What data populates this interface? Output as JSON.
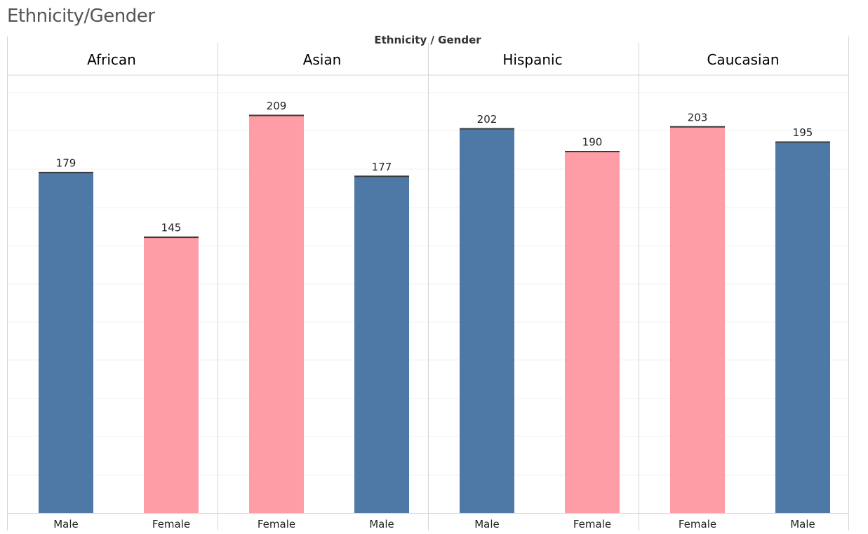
{
  "title": "Ethnicity/Gender",
  "chart_data": {
    "type": "bar",
    "column_header": "Ethnicity / Gender",
    "ylim": [
      0,
      230
    ],
    "grid": true,
    "legend": "none",
    "colors": {
      "Male": "#4e79a7",
      "Female": "#ff9da7"
    },
    "panels": [
      {
        "name": "African",
        "bars": [
          {
            "category": "Male",
            "value": 179
          },
          {
            "category": "Female",
            "value": 145
          }
        ]
      },
      {
        "name": "Asian",
        "bars": [
          {
            "category": "Female",
            "value": 209
          },
          {
            "category": "Male",
            "value": 177
          }
        ]
      },
      {
        "name": "Hispanic",
        "bars": [
          {
            "category": "Male",
            "value": 202
          },
          {
            "category": "Female",
            "value": 190
          }
        ]
      },
      {
        "name": "Caucasian",
        "bars": [
          {
            "category": "Female",
            "value": 203
          },
          {
            "category": "Male",
            "value": 195
          }
        ]
      }
    ]
  }
}
